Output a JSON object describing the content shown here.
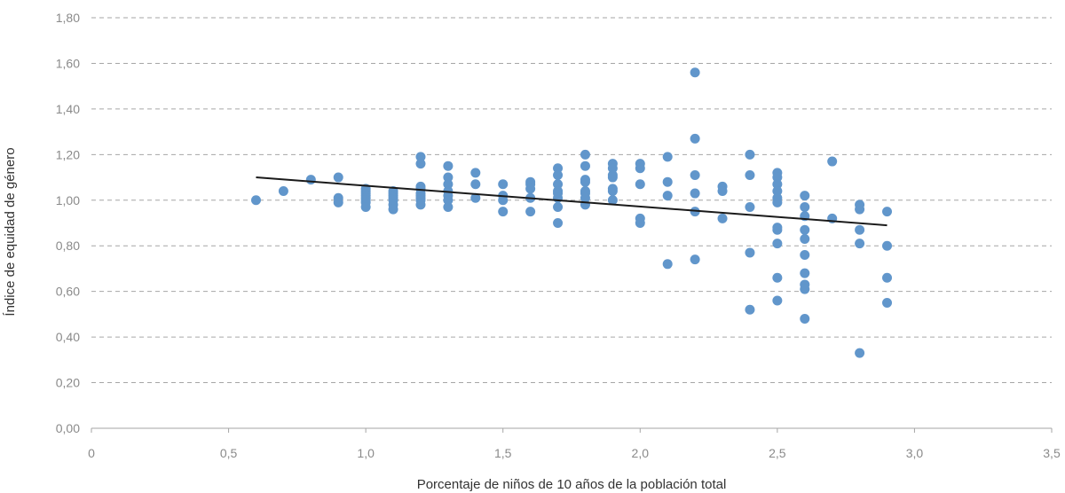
{
  "chart_data": {
    "type": "scatter",
    "xlabel": "Porcentaje de niños de 10 años de la población total",
    "ylabel": "Índice de equidad de género",
    "xlim": [
      0,
      3.5
    ],
    "ylim": [
      0,
      1.8
    ],
    "x_ticks": [
      0,
      0.5,
      1.0,
      1.5,
      2.0,
      2.5,
      3.0,
      3.5
    ],
    "x_tick_labels": [
      "0",
      "0,5",
      "1,0",
      "1,5",
      "2,0",
      "2,5",
      "3,0",
      "3,5"
    ],
    "y_ticks": [
      0,
      0.2,
      0.4,
      0.6,
      0.8,
      1.0,
      1.2,
      1.4,
      1.6,
      1.8
    ],
    "y_tick_labels": [
      "0,00",
      "0,20",
      "0,40",
      "0,60",
      "0,80",
      "1,00",
      "1,20",
      "1,40",
      "1,60",
      "1,80"
    ],
    "grid": "horizontal dashed",
    "point_color": "#6196cb",
    "trendline_color": "#1a1a1a",
    "trendline": {
      "x": [
        0.6,
        2.9
      ],
      "y": [
        1.1,
        0.89
      ]
    },
    "points": [
      [
        0.6,
        1.0
      ],
      [
        0.7,
        1.04
      ],
      [
        0.8,
        1.09
      ],
      [
        0.9,
        1.1
      ],
      [
        0.9,
        1.01
      ],
      [
        0.9,
        0.99
      ],
      [
        1.0,
        1.05
      ],
      [
        1.0,
        1.04
      ],
      [
        1.0,
        1.03
      ],
      [
        1.0,
        1.02
      ],
      [
        1.0,
        1.01
      ],
      [
        1.0,
        1.0
      ],
      [
        1.0,
        0.99
      ],
      [
        1.0,
        0.97
      ],
      [
        1.1,
        1.04
      ],
      [
        1.1,
        1.03
      ],
      [
        1.1,
        1.02
      ],
      [
        1.1,
        1.01
      ],
      [
        1.1,
        1.0
      ],
      [
        1.1,
        0.98
      ],
      [
        1.1,
        0.96
      ],
      [
        1.2,
        1.19
      ],
      [
        1.2,
        1.16
      ],
      [
        1.2,
        1.06
      ],
      [
        1.2,
        1.05
      ],
      [
        1.2,
        1.03
      ],
      [
        1.2,
        1.02
      ],
      [
        1.2,
        1.01
      ],
      [
        1.2,
        1.0
      ],
      [
        1.2,
        0.98
      ],
      [
        1.3,
        1.15
      ],
      [
        1.3,
        1.1
      ],
      [
        1.3,
        1.07
      ],
      [
        1.3,
        1.04
      ],
      [
        1.3,
        1.02
      ],
      [
        1.3,
        1.0
      ],
      [
        1.3,
        0.97
      ],
      [
        1.4,
        1.12
      ],
      [
        1.4,
        1.07
      ],
      [
        1.4,
        1.01
      ],
      [
        1.5,
        1.07
      ],
      [
        1.5,
        1.02
      ],
      [
        1.5,
        1.0
      ],
      [
        1.5,
        0.95
      ],
      [
        1.6,
        1.08
      ],
      [
        1.6,
        1.07
      ],
      [
        1.6,
        1.05
      ],
      [
        1.6,
        1.01
      ],
      [
        1.6,
        0.95
      ],
      [
        1.7,
        1.14
      ],
      [
        1.7,
        1.11
      ],
      [
        1.7,
        1.07
      ],
      [
        1.7,
        1.04
      ],
      [
        1.7,
        1.03
      ],
      [
        1.7,
        1.01
      ],
      [
        1.7,
        0.97
      ],
      [
        1.7,
        0.9
      ],
      [
        1.8,
        1.2
      ],
      [
        1.8,
        1.15
      ],
      [
        1.8,
        1.09
      ],
      [
        1.8,
        1.08
      ],
      [
        1.8,
        1.04
      ],
      [
        1.8,
        1.03
      ],
      [
        1.8,
        1.01
      ],
      [
        1.8,
        0.98
      ],
      [
        1.9,
        1.16
      ],
      [
        1.9,
        1.14
      ],
      [
        1.9,
        1.11
      ],
      [
        1.9,
        1.1
      ],
      [
        1.9,
        1.05
      ],
      [
        1.9,
        1.04
      ],
      [
        1.9,
        1.0
      ],
      [
        2.0,
        1.16
      ],
      [
        2.0,
        1.14
      ],
      [
        2.0,
        1.07
      ],
      [
        2.0,
        0.92
      ],
      [
        2.0,
        0.9
      ],
      [
        2.1,
        1.19
      ],
      [
        2.1,
        1.08
      ],
      [
        2.1,
        1.02
      ],
      [
        2.1,
        0.72
      ],
      [
        2.2,
        1.56
      ],
      [
        2.2,
        1.27
      ],
      [
        2.2,
        1.11
      ],
      [
        2.2,
        1.03
      ],
      [
        2.2,
        0.95
      ],
      [
        2.2,
        0.74
      ],
      [
        2.3,
        1.06
      ],
      [
        2.3,
        1.04
      ],
      [
        2.3,
        0.92
      ],
      [
        2.4,
        1.2
      ],
      [
        2.4,
        1.11
      ],
      [
        2.4,
        0.97
      ],
      [
        2.4,
        0.77
      ],
      [
        2.4,
        0.52
      ],
      [
        2.5,
        1.12
      ],
      [
        2.5,
        1.1
      ],
      [
        2.5,
        1.07
      ],
      [
        2.5,
        1.04
      ],
      [
        2.5,
        1.01
      ],
      [
        2.5,
        0.99
      ],
      [
        2.5,
        0.88
      ],
      [
        2.5,
        0.87
      ],
      [
        2.5,
        0.81
      ],
      [
        2.5,
        0.66
      ],
      [
        2.5,
        0.56
      ],
      [
        2.6,
        1.02
      ],
      [
        2.6,
        0.97
      ],
      [
        2.6,
        0.93
      ],
      [
        2.6,
        0.87
      ],
      [
        2.6,
        0.83
      ],
      [
        2.6,
        0.76
      ],
      [
        2.6,
        0.68
      ],
      [
        2.6,
        0.63
      ],
      [
        2.6,
        0.61
      ],
      [
        2.6,
        0.48
      ],
      [
        2.7,
        1.17
      ],
      [
        2.7,
        0.92
      ],
      [
        2.8,
        0.98
      ],
      [
        2.8,
        0.96
      ],
      [
        2.8,
        0.87
      ],
      [
        2.8,
        0.81
      ],
      [
        2.8,
        0.33
      ],
      [
        2.9,
        0.95
      ],
      [
        2.9,
        0.8
      ],
      [
        2.9,
        0.66
      ],
      [
        2.9,
        0.55
      ]
    ]
  }
}
